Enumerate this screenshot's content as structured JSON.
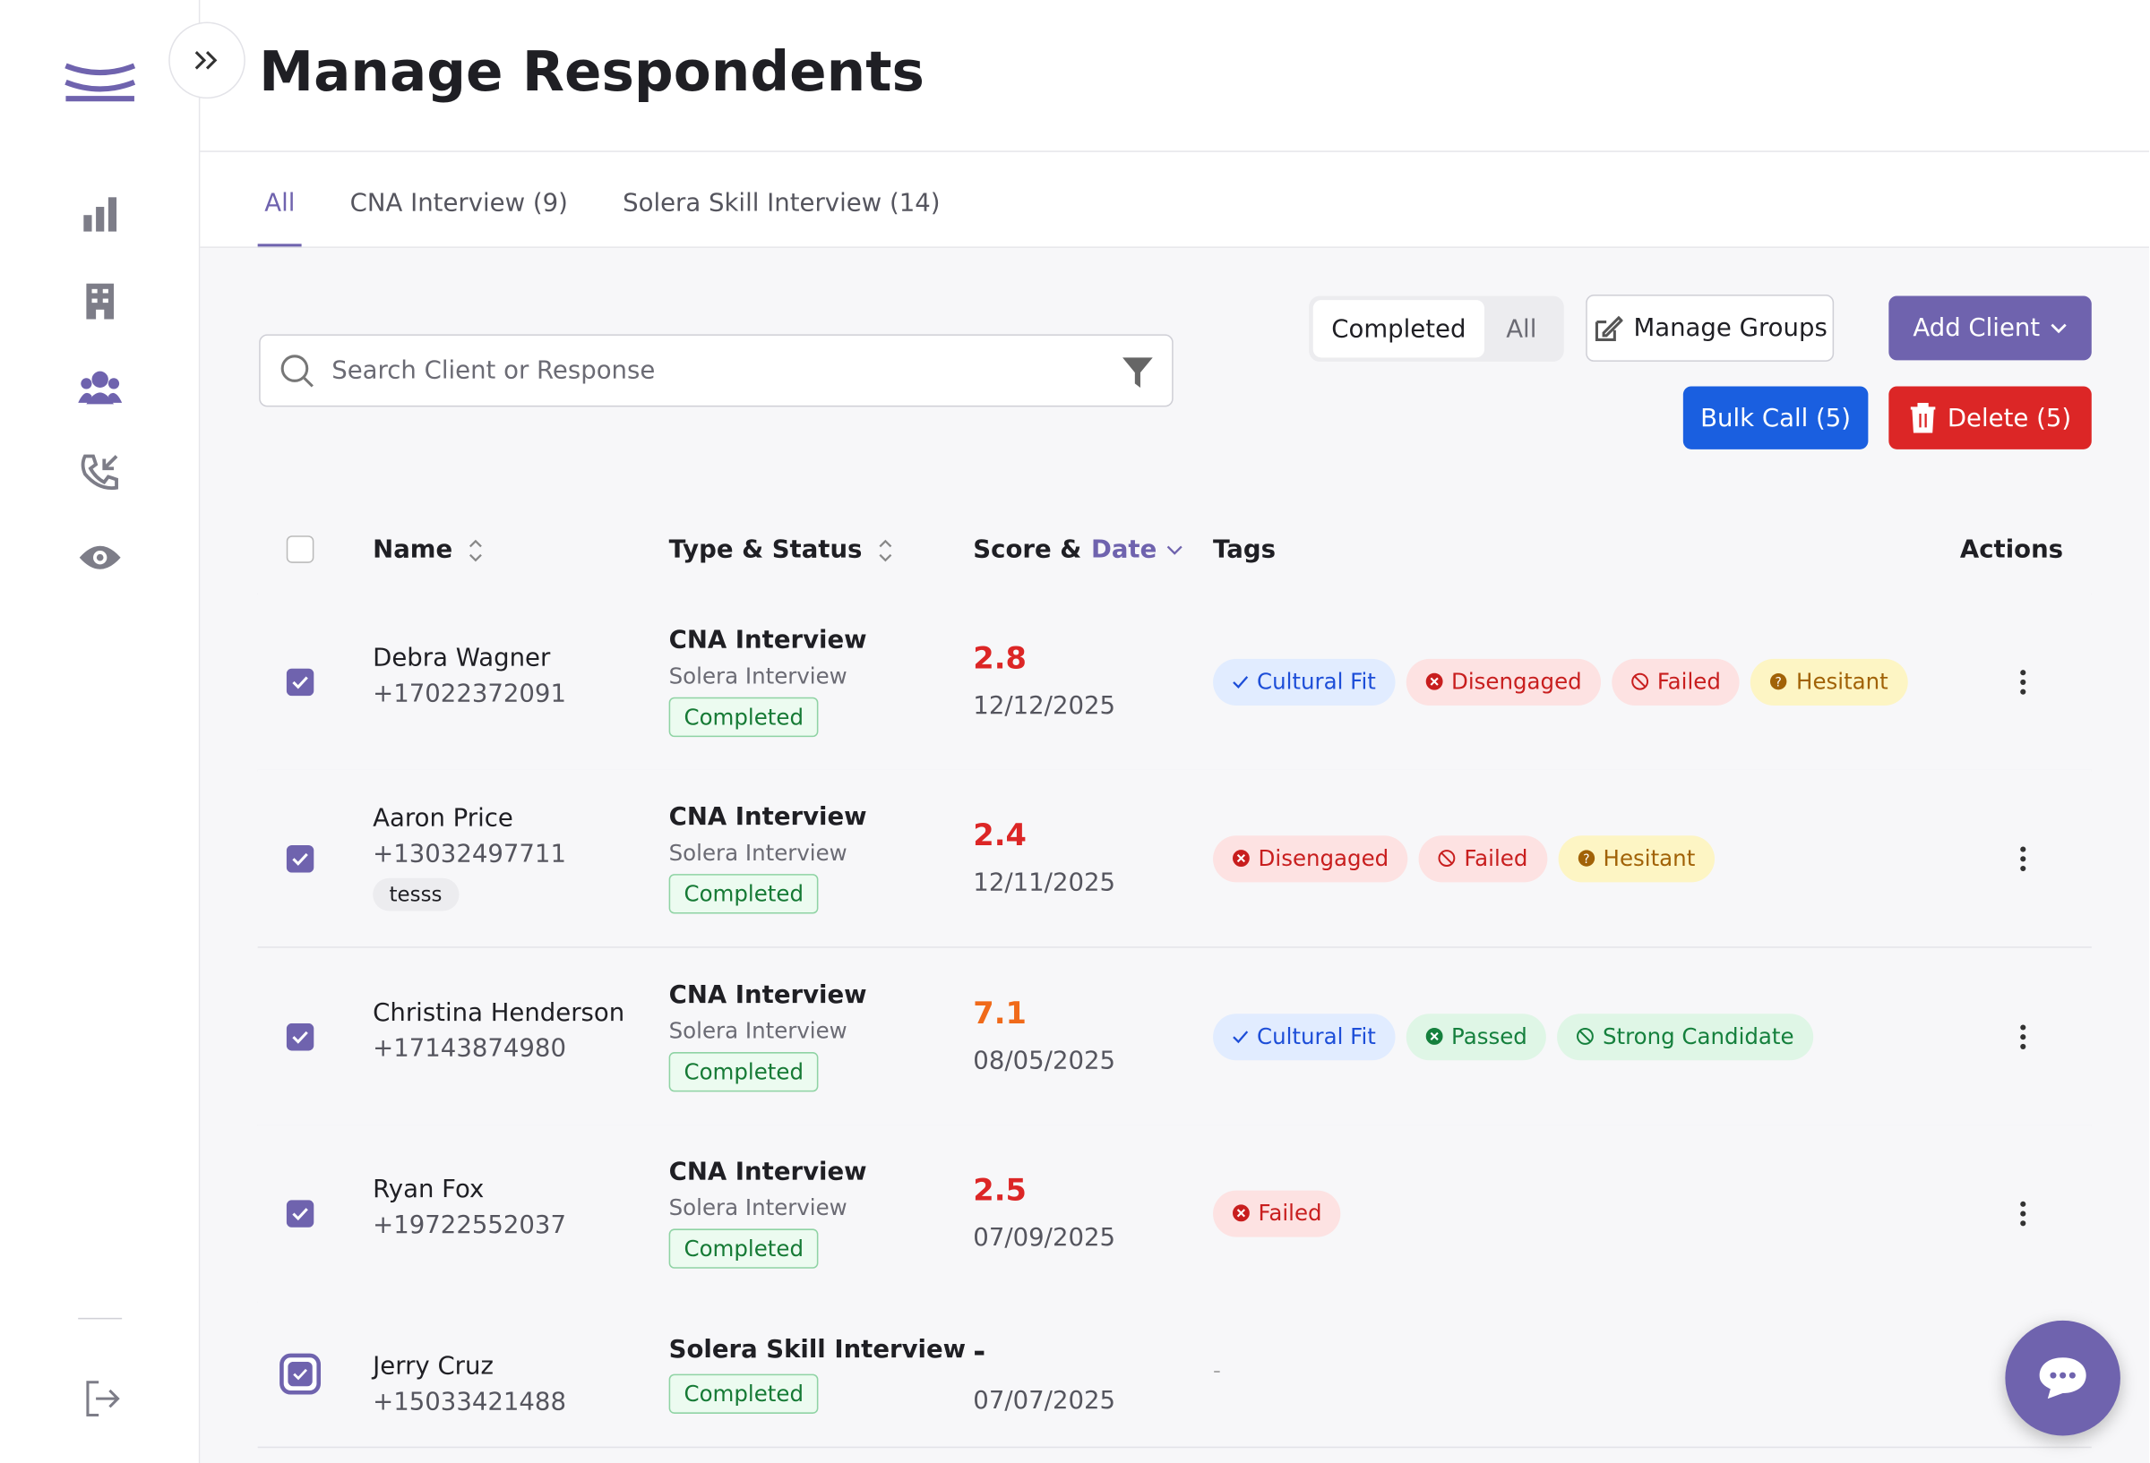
{
  "header": {
    "title": "Manage Respondents"
  },
  "tabs": [
    "All",
    "CNA Interview (9)",
    "Solera Skill Interview (14)"
  ],
  "search_placeholder": "Search Client or Response",
  "segment": [
    "Completed",
    "All"
  ],
  "buttons": {
    "manage_groups": "Manage Groups",
    "add_client": "Add Client",
    "bulk_call": "Bulk Call (5)",
    "delete": "Delete (5)"
  },
  "table": {
    "columns": [
      "Name",
      "Type & Status",
      "Score &",
      "Date",
      "Tags",
      "Actions"
    ],
    "rows": [
      {
        "name": "Debra Wagner",
        "phone": "+17022372091",
        "type": "CNA Interview",
        "subtype": "Solera Interview",
        "status": "Completed",
        "score": 2.8,
        "score_color": "#dc2626",
        "date": "12/12/2025",
        "tags": [
          {
            "label": "Cultural Fit",
            "color": "#1d4ed8"
          },
          {
            "label": "Disengaged",
            "color": "#c81e1e"
          },
          {
            "label": "Failed",
            "color": "#c81e1e"
          },
          {
            "label": "Hesitant",
            "color": "#a16207"
          }
        ]
      },
      {
        "name": "Aaron Price",
        "phone": "+13032497711",
        "note": "tesss",
        "type": "CNA Interview",
        "subtype": "Solera Interview",
        "status": "Completed",
        "score": 2.4,
        "score_color": "#dc2626",
        "date": "12/11/2025",
        "tags": [
          {
            "label": "Disengaged",
            "color": "#c81e1e"
          },
          {
            "label": "Failed",
            "color": "#c81e1e"
          },
          {
            "label": "Hesitant",
            "color": "#a16207"
          }
        ]
      },
      {
        "name": "Christina Henderson",
        "phone": "+17143874980",
        "type": "CNA Interview",
        "subtype": "Solera Interview",
        "status": "Completed",
        "score": 7.1,
        "score_color": "#f06a1a",
        "date": "08/05/2025",
        "tags": [
          {
            "label": "Cultural Fit",
            "color": "#1d4ed8"
          },
          {
            "label": "Passed",
            "color": "#15803d"
          },
          {
            "label": "Strong Candidate",
            "color": "#15803d"
          }
        ]
      },
      {
        "name": "Ryan Fox",
        "phone": "+19722552037",
        "type": "CNA Interview",
        "subtype": "Solera Interview",
        "status": "Completed",
        "score": 2.5,
        "score_color": "#dc2626",
        "date": "07/09/2025",
        "tags": [
          {
            "label": "Failed",
            "color": "#c81e1e"
          }
        ]
      },
      {
        "name": "Jerry Cruz",
        "phone": "+15033421488",
        "type": "Solera Skill Interview",
        "status": "Completed",
        "score": "-",
        "score_color": "#1f1f24",
        "date": "07/07/2025",
        "tags": "-"
      }
    ]
  }
}
